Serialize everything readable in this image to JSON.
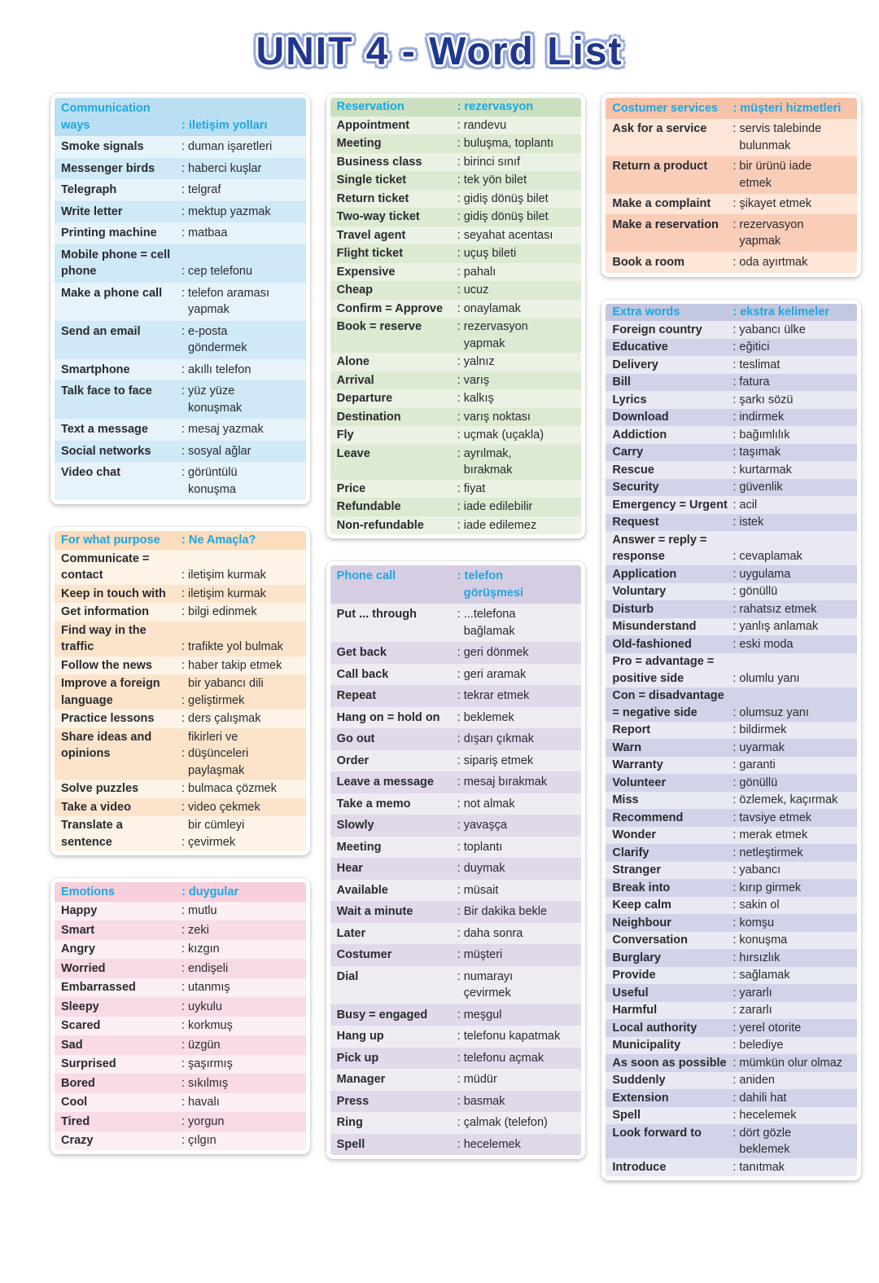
{
  "title": "UNIT 4 - Word List",
  "accent_colors": {
    "title_fill": "#21368f",
    "title_outline_inner": "#ffffff",
    "title_outline_outer": "#98a9db",
    "table_header_text": "#1ea7e0",
    "body_text": "#2a2a30"
  },
  "columns": [
    {
      "tables": [
        {
          "id": "communication-ways",
          "theme": "blue",
          "colors": {
            "header_bg": "#badff2",
            "row_light": "#e6f3fb",
            "row_dark": "#cfe9f7"
          },
          "header": {
            "en": "Communication\nways",
            "tr": "\n: iletişim yolları"
          },
          "rows": [
            {
              "en": "Smoke signals",
              "tr": ": duman işaretleri"
            },
            {
              "en": "Messenger birds",
              "tr": ": haberci kuşlar"
            },
            {
              "en": "Telegraph",
              "tr": ": telgraf"
            },
            {
              "en": "Write letter",
              "tr": ": mektup yazmak"
            },
            {
              "en": "Printing machine",
              "tr": ": matbaa"
            },
            {
              "en": "Mobile phone = cell\nphone",
              "tr": "\n: cep telefonu"
            },
            {
              "en": "Make a phone call",
              "tr": ": telefon araması\n  yapmak"
            },
            {
              "en": "Send an email",
              "tr": ": e-posta\n  göndermek"
            },
            {
              "en": "Smartphone",
              "tr": ": akıllı telefon"
            },
            {
              "en": "Talk face to face",
              "tr": ": yüz yüze\n  konuşmak"
            },
            {
              "en": "Text a message",
              "tr": ": mesaj yazmak"
            },
            {
              "en": "Social networks",
              "tr": ": sosyal ağlar"
            },
            {
              "en": "Video chat",
              "tr": ": görüntülü\n  konuşma"
            }
          ]
        },
        {
          "id": "for-what-purpose",
          "theme": "orange",
          "colors": {
            "header_bg": "#fbdcbc",
            "row_light": "#fdf3e6",
            "row_dark": "#fce4cb"
          },
          "header": {
            "en": "For what purpose",
            "tr": ": Ne Amaçla?"
          },
          "rows": [
            {
              "en": "Communicate =\ncontact",
              "tr": "\n: iletişim kurmak"
            },
            {
              "en": "Keep in touch with",
              "tr": ": iletişim kurmak"
            },
            {
              "en": "Get information",
              "tr": ": bilgi edinmek"
            },
            {
              "en": "Find way in the\ntraffic",
              "tr": "\n: trafikte yol bulmak"
            },
            {
              "en": "Follow the news",
              "tr": ": haber takip etmek"
            },
            {
              "en": "Improve a foreign\nlanguage",
              "tr": "  bir yabancı dili\n: geliştirmek"
            },
            {
              "en": "Practice lessons",
              "tr": ": ders çalışmak"
            },
            {
              "en": "Share ideas and\nopinions",
              "tr": "  fikirleri ve\n: düşünceleri\n  paylaşmak"
            },
            {
              "en": "Solve puzzles",
              "tr": ": bulmaca çözmek"
            },
            {
              "en": "Take a video",
              "tr": ": video çekmek"
            },
            {
              "en": "Translate a\nsentence",
              "tr": "  bir cümleyi\n: çevirmek"
            }
          ]
        },
        {
          "id": "emotions",
          "theme": "pink",
          "colors": {
            "header_bg": "#f7cfdd",
            "row_light": "#fceff4",
            "row_dark": "#f8dbe6"
          },
          "header": {
            "en": "Emotions",
            "tr": ": duygular"
          },
          "rows": [
            {
              "en": "Happy",
              "tr": ": mutlu"
            },
            {
              "en": "Smart",
              "tr": ": zeki"
            },
            {
              "en": "Angry",
              "tr": ": kızgın"
            },
            {
              "en": "Worried",
              "tr": ": endişeli"
            },
            {
              "en": "Embarrassed",
              "tr": ": utanmış"
            },
            {
              "en": "Sleepy",
              "tr": ": uykulu"
            },
            {
              "en": "Scared",
              "tr": ": korkmuş"
            },
            {
              "en": "Sad",
              "tr": ": üzgün"
            },
            {
              "en": "Surprised",
              "tr": ": şaşırmış"
            },
            {
              "en": "Bored",
              "tr": ": sıkılmış"
            },
            {
              "en": "Cool",
              "tr": ": havalı"
            },
            {
              "en": "Tired",
              "tr": ": yorgun"
            },
            {
              "en": "Crazy",
              "tr": ": çılgın"
            }
          ]
        }
      ]
    },
    {
      "tables": [
        {
          "id": "reservation",
          "theme": "green",
          "colors": {
            "header_bg": "#cbe0c0",
            "row_light": "#eaf2e3",
            "row_dark": "#dbead1"
          },
          "header": {
            "en": "Reservation",
            "tr": ": rezervasyon"
          },
          "rows": [
            {
              "en": "Appointment",
              "tr": ": randevu"
            },
            {
              "en": "Meeting",
              "tr": ": buluşma, toplantı"
            },
            {
              "en": "Business class",
              "tr": ": birinci sınıf"
            },
            {
              "en": "Single ticket",
              "tr": ": tek yön bilet"
            },
            {
              "en": "Return ticket",
              "tr": ": gidiş dönüş bilet"
            },
            {
              "en": "Two-way ticket",
              "tr": ": gidiş dönüş bilet"
            },
            {
              "en": "Travel agent",
              "tr": ": seyahat acentası"
            },
            {
              "en": "Flight ticket",
              "tr": ": uçuş bileti"
            },
            {
              "en": "Expensive",
              "tr": ": pahalı"
            },
            {
              "en": "Cheap",
              "tr": ": ucuz"
            },
            {
              "en": "Confirm = Approve",
              "tr": ": onaylamak"
            },
            {
              "en": "Book = reserve",
              "tr": ": rezervasyon\n  yapmak"
            },
            {
              "en": "Alone",
              "tr": ": yalnız"
            },
            {
              "en": "Arrival",
              "tr": ": varış"
            },
            {
              "en": "Departure",
              "tr": ": kalkış"
            },
            {
              "en": "Destination",
              "tr": ": varış noktası"
            },
            {
              "en": "Fly",
              "tr": ": uçmak (uçakla)"
            },
            {
              "en": "Leave",
              "tr": ": ayrılmak,\n  bırakmak"
            },
            {
              "en": "Price",
              "tr": ": fiyat"
            },
            {
              "en": "Refundable",
              "tr": ": iade edilebilir"
            },
            {
              "en": "Non-refundable",
              "tr": ": iade edilemez"
            }
          ]
        },
        {
          "id": "phone-call",
          "theme": "purple",
          "colors": {
            "header_bg": "#d7cde2",
            "row_light": "#efebf3",
            "row_dark": "#e1d9ea"
          },
          "header": {
            "en": "Phone call",
            "tr": ": telefon\n  görüşmesi"
          },
          "rows": [
            {
              "en": "Put ... through",
              "tr": ": ...telefona\n  bağlamak"
            },
            {
              "en": "Get back",
              "tr": ": geri dönmek"
            },
            {
              "en": "Call back",
              "tr": ": geri aramak"
            },
            {
              "en": "Repeat",
              "tr": ": tekrar etmek"
            },
            {
              "en": "Hang on = hold on",
              "tr": ": beklemek"
            },
            {
              "en": "Go out",
              "tr": ": dışarı çıkmak"
            },
            {
              "en": "Order",
              "tr": ": sipariş etmek"
            },
            {
              "en": "Leave a message",
              "tr": ": mesaj bırakmak"
            },
            {
              "en": "Take a memo",
              "tr": ": not almak"
            },
            {
              "en": "Slowly",
              "tr": ": yavaşça"
            },
            {
              "en": "Meeting",
              "tr": ": toplantı"
            },
            {
              "en": "Hear",
              "tr": ": duymak"
            },
            {
              "en": "Available",
              "tr": ": müsait"
            },
            {
              "en": "Wait a minute",
              "tr": ": Bir dakika bekle"
            },
            {
              "en": "Later",
              "tr": ": daha sonra"
            },
            {
              "en": "Costumer",
              "tr": ": müşteri"
            },
            {
              "en": "Dial",
              "tr": ": numarayı\n  çevirmek"
            },
            {
              "en": "Busy = engaged",
              "tr": ": meşgul"
            },
            {
              "en": "Hang up",
              "tr": ": telefonu kapatmak"
            },
            {
              "en": "Pick up",
              "tr": ": telefonu açmak"
            },
            {
              "en": "Manager",
              "tr": ": müdür"
            },
            {
              "en": "Press",
              "tr": ": basmak"
            },
            {
              "en": "Ring",
              "tr": ": çalmak (telefon)"
            },
            {
              "en": "Spell",
              "tr": ": hecelemek"
            }
          ]
        }
      ]
    },
    {
      "tables": [
        {
          "id": "costumer-services",
          "theme": "salmon",
          "colors": {
            "header_bg": "#f7c3a8",
            "row_light": "#fde5d7",
            "row_dark": "#f9cdb8"
          },
          "header": {
            "en": "Costumer services",
            "tr": ": müşteri hizmetleri"
          },
          "rows": [
            {
              "en": "Ask for a service",
              "tr": ": servis talebinde\n  bulunmak"
            },
            {
              "en": "Return a product",
              "tr": ": bir ürünü iade\n  etmek"
            },
            {
              "en": "Make a complaint",
              "tr": ": şikayet etmek"
            },
            {
              "en": "Make a reservation",
              "tr": ": rezervasyon\n  yapmak"
            },
            {
              "en": "Book a room",
              "tr": ": oda ayırtmak"
            }
          ]
        },
        {
          "id": "extra-words",
          "theme": "lavender",
          "colors": {
            "header_bg": "#c3c7e0",
            "row_light": "#e8e9f2",
            "row_dark": "#d1d4e8"
          },
          "header": {
            "en": "Extra words",
            "tr": ": ekstra kelimeler"
          },
          "rows": [
            {
              "en": "Foreign country",
              "tr": ": yabancı ülke"
            },
            {
              "en": "Educative",
              "tr": ": eğitici"
            },
            {
              "en": "Delivery",
              "tr": ": teslimat"
            },
            {
              "en": "Bill",
              "tr": ": fatura"
            },
            {
              "en": "Lyrics",
              "tr": ": şarkı sözü"
            },
            {
              "en": "Download",
              "tr": ": indirmek"
            },
            {
              "en": "Addiction",
              "tr": ": bağımlılık"
            },
            {
              "en": "Carry",
              "tr": ": taşımak"
            },
            {
              "en": "Rescue",
              "tr": ": kurtarmak"
            },
            {
              "en": "Security",
              "tr": ": güvenlik"
            },
            {
              "en": "Emergency = Urgent",
              "tr": ": acil"
            },
            {
              "en": "Request",
              "tr": ": istek"
            },
            {
              "en": "Answer = reply =\nresponse",
              "tr": "\n: cevaplamak"
            },
            {
              "en": "Application",
              "tr": ": uygulama"
            },
            {
              "en": "Voluntary",
              "tr": ": gönüllü"
            },
            {
              "en": "Disturb",
              "tr": ": rahatsız etmek"
            },
            {
              "en": "Misunderstand",
              "tr": ": yanlış anlamak"
            },
            {
              "en": "Old-fashioned",
              "tr": ": eski moda"
            },
            {
              "en": "Pro = advantage =\npositive side",
              "tr": "\n: olumlu yanı"
            },
            {
              "en": "Con = disadvantage\n= negative side",
              "tr": "\n: olumsuz yanı"
            },
            {
              "en": "Report",
              "tr": ": bildirmek"
            },
            {
              "en": "Warn",
              "tr": ": uyarmak"
            },
            {
              "en": "Warranty",
              "tr": ": garanti"
            },
            {
              "en": "Volunteer",
              "tr": ": gönüllü"
            },
            {
              "en": "Miss",
              "tr": ": özlemek, kaçırmak"
            },
            {
              "en": "Recommend",
              "tr": ": tavsiye etmek"
            },
            {
              "en": "Wonder",
              "tr": ": merak etmek"
            },
            {
              "en": "Clarify",
              "tr": ": netleştirmek"
            },
            {
              "en": "Stranger",
              "tr": ": yabancı"
            },
            {
              "en": "Break into",
              "tr": ": kırıp girmek"
            },
            {
              "en": "Keep calm",
              "tr": ": sakin ol"
            },
            {
              "en": "Neighbour",
              "tr": ": komşu"
            },
            {
              "en": "Conversation",
              "tr": ": konuşma"
            },
            {
              "en": "Burglary",
              "tr": ": hırsızlık"
            },
            {
              "en": "Provide",
              "tr": ": sağlamak"
            },
            {
              "en": "Useful",
              "tr": ": yararlı"
            },
            {
              "en": "Harmful",
              "tr": ": zararlı"
            },
            {
              "en": "Local authority",
              "tr": ": yerel otorite"
            },
            {
              "en": "Municipality",
              "tr": ": belediye"
            },
            {
              "en": "As soon as possible",
              "tr": ": mümkün olur olmaz"
            },
            {
              "en": "Suddenly",
              "tr": ": aniden"
            },
            {
              "en": "Extension",
              "tr": ": dahili hat"
            },
            {
              "en": "Spell",
              "tr": ": hecelemek"
            },
            {
              "en": "Look forward to",
              "tr": ": dört gözle\n  beklemek"
            },
            {
              "en": "Introduce",
              "tr": ": tanıtmak"
            }
          ]
        }
      ]
    }
  ]
}
